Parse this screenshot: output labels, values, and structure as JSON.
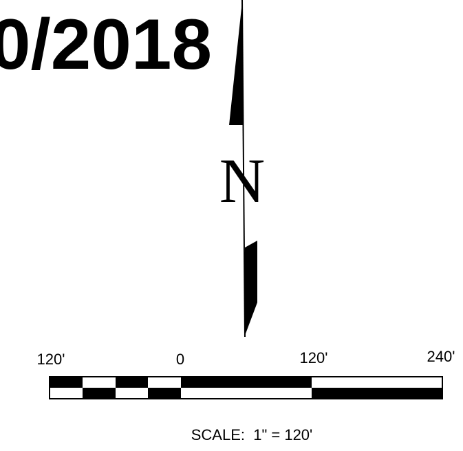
{
  "date_fragment": "0/2018",
  "north_label": "N",
  "scale_bar": {
    "labels": [
      "120'",
      "0",
      "120'",
      "240'"
    ]
  },
  "scale_note": "SCALE:  1\" = 120'"
}
